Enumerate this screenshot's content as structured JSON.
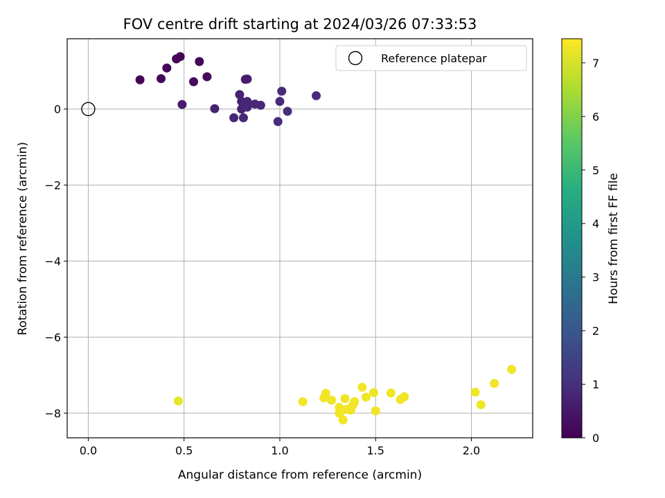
{
  "chart_data": {
    "type": "scatter",
    "title": "FOV centre drift starting at 2024/03/26 07:33:53",
    "xlabel": "Angular distance from reference (arcmin)",
    "ylabel": "Rotation from reference (arcmin)",
    "xlim": [
      -0.11,
      2.32
    ],
    "ylim": [
      -8.65,
      1.85
    ],
    "xticks": [
      0.0,
      0.5,
      1.0,
      1.5,
      2.0
    ],
    "xtick_labels": [
      "0.0",
      "0.5",
      "1.0",
      "1.5",
      "2.0"
    ],
    "yticks": [
      0,
      -2,
      -4,
      -6,
      -8
    ],
    "ytick_labels": [
      "0",
      "−2",
      "−4",
      "−6",
      "−8"
    ],
    "grid": true,
    "legend_position": "top-right",
    "colormap": "viridis",
    "colorbar": {
      "label": "Hours from first FF file",
      "range": [
        0,
        7.45
      ],
      "ticks": [
        0,
        1,
        2,
        3,
        4,
        5,
        6,
        7
      ],
      "tick_labels": [
        "0",
        "1",
        "2",
        "3",
        "4",
        "5",
        "6",
        "7"
      ]
    },
    "reference": {
      "name": "Reference platepar",
      "x": 0.0,
      "y": 0.0,
      "marker": "open-circle"
    },
    "series": [
      {
        "marker": "filled-circle",
        "points": [
          {
            "x": 0.27,
            "y": 0.77,
            "c": 0.1
          },
          {
            "x": 0.38,
            "y": 0.8,
            "c": 0.15
          },
          {
            "x": 0.41,
            "y": 1.08,
            "c": 0.1
          },
          {
            "x": 0.46,
            "y": 1.32,
            "c": 0.05
          },
          {
            "x": 0.48,
            "y": 1.38,
            "c": 0.05
          },
          {
            "x": 0.58,
            "y": 1.25,
            "c": 0.1
          },
          {
            "x": 0.55,
            "y": 0.72,
            "c": 0.2
          },
          {
            "x": 0.62,
            "y": 0.85,
            "c": 0.2
          },
          {
            "x": 0.49,
            "y": 0.12,
            "c": 0.6
          },
          {
            "x": 0.66,
            "y": 0.01,
            "c": 0.7
          },
          {
            "x": 0.76,
            "y": -0.23,
            "c": 0.8
          },
          {
            "x": 0.79,
            "y": 0.38,
            "c": 0.7
          },
          {
            "x": 0.8,
            "y": 0.2,
            "c": 0.75
          },
          {
            "x": 0.8,
            "y": 0.0,
            "c": 0.75
          },
          {
            "x": 0.81,
            "y": -0.23,
            "c": 0.8
          },
          {
            "x": 0.82,
            "y": 0.1,
            "c": 0.8
          },
          {
            "x": 0.83,
            "y": 0.2,
            "c": 0.8
          },
          {
            "x": 0.83,
            "y": 0.05,
            "c": 0.8
          },
          {
            "x": 0.82,
            "y": 0.78,
            "c": 0.6
          },
          {
            "x": 0.83,
            "y": 0.79,
            "c": 0.6
          },
          {
            "x": 0.87,
            "y": 0.13,
            "c": 0.85
          },
          {
            "x": 0.9,
            "y": 0.1,
            "c": 0.85
          },
          {
            "x": 0.99,
            "y": -0.33,
            "c": 0.9
          },
          {
            "x": 1.0,
            "y": 0.2,
            "c": 0.9
          },
          {
            "x": 1.01,
            "y": 0.47,
            "c": 0.9
          },
          {
            "x": 1.04,
            "y": -0.06,
            "c": 0.95
          },
          {
            "x": 1.19,
            "y": 0.35,
            "c": 0.9
          },
          {
            "x": 0.47,
            "y": -7.68,
            "c": 7.2
          },
          {
            "x": 1.12,
            "y": -7.7,
            "c": 7.3
          },
          {
            "x": 1.23,
            "y": -7.6,
            "c": 7.3
          },
          {
            "x": 1.24,
            "y": -7.48,
            "c": 7.3
          },
          {
            "x": 1.27,
            "y": -7.66,
            "c": 7.3
          },
          {
            "x": 1.31,
            "y": -7.85,
            "c": 7.3
          },
          {
            "x": 1.31,
            "y": -8.0,
            "c": 7.3
          },
          {
            "x": 1.32,
            "y": -7.95,
            "c": 7.3
          },
          {
            "x": 1.33,
            "y": -8.18,
            "c": 7.3
          },
          {
            "x": 1.34,
            "y": -7.62,
            "c": 7.3
          },
          {
            "x": 1.35,
            "y": -7.9,
            "c": 7.3
          },
          {
            "x": 1.37,
            "y": -7.92,
            "c": 7.3
          },
          {
            "x": 1.38,
            "y": -7.8,
            "c": 7.3
          },
          {
            "x": 1.39,
            "y": -7.7,
            "c": 7.3
          },
          {
            "x": 1.43,
            "y": -7.32,
            "c": 7.3
          },
          {
            "x": 1.45,
            "y": -7.58,
            "c": 7.3
          },
          {
            "x": 1.49,
            "y": -7.46,
            "c": 7.3
          },
          {
            "x": 1.5,
            "y": -7.94,
            "c": 7.3
          },
          {
            "x": 1.58,
            "y": -7.47,
            "c": 7.3
          },
          {
            "x": 1.63,
            "y": -7.64,
            "c": 7.3
          },
          {
            "x": 1.65,
            "y": -7.57,
            "c": 7.3
          },
          {
            "x": 2.02,
            "y": -7.45,
            "c": 7.3
          },
          {
            "x": 2.05,
            "y": -7.78,
            "c": 7.3
          },
          {
            "x": 2.12,
            "y": -7.22,
            "c": 7.3
          },
          {
            "x": 2.21,
            "y": -6.85,
            "c": 7.3
          }
        ]
      }
    ]
  }
}
